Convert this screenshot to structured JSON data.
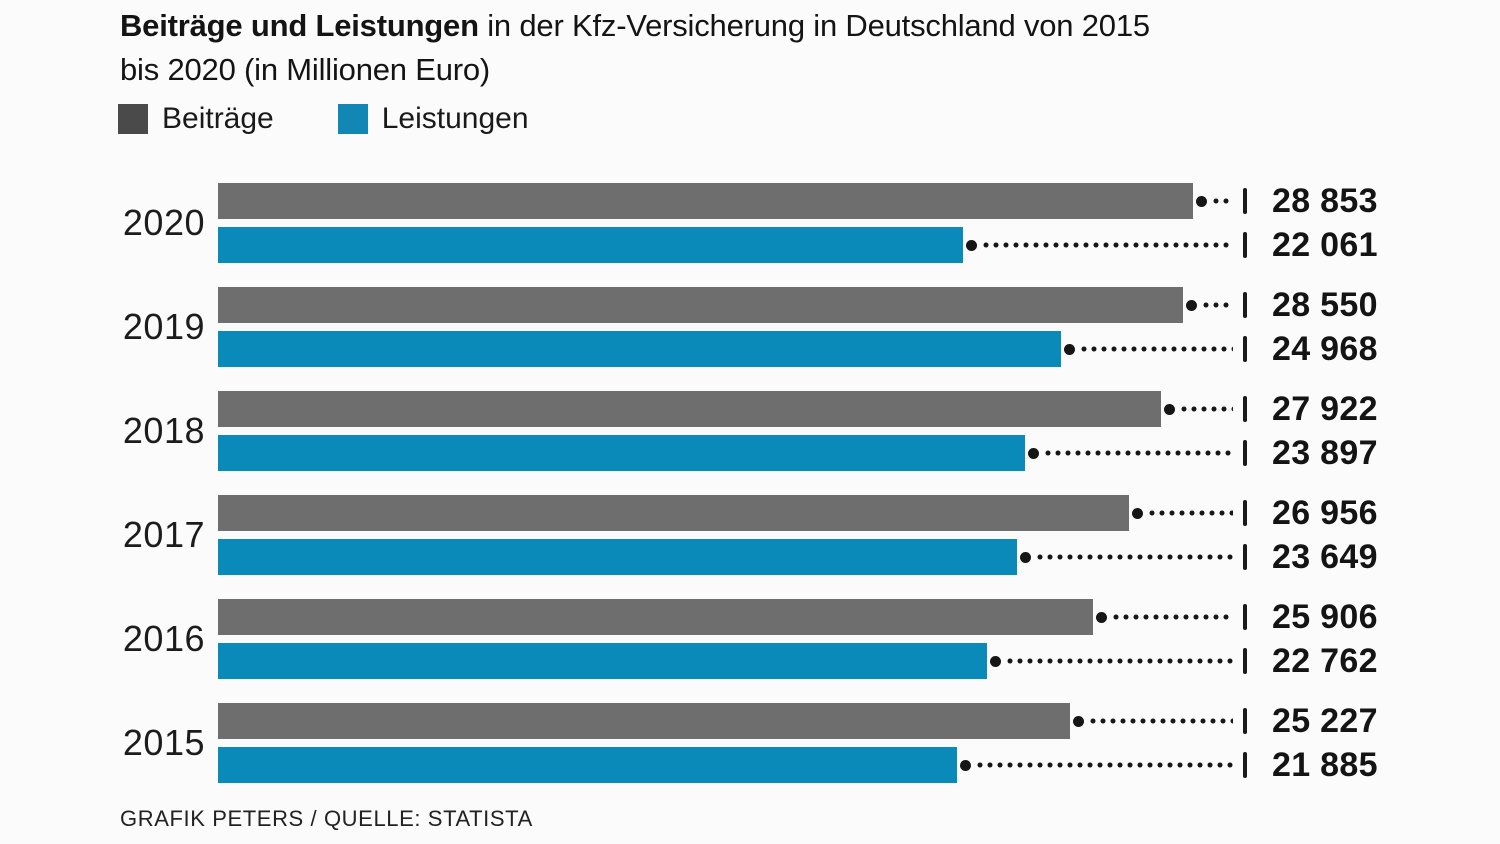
{
  "title": {
    "bold": "Beiträge und Leistungen",
    "rest": " in der Kfz-Versicherung in Deutschland von 2015",
    "line2": "bis 2020 (in Millionen Euro)"
  },
  "legend": {
    "items": [
      {
        "label": "Beiträge",
        "color": "#4a4a4a"
      },
      {
        "label": "Leistungen",
        "color": "#1287b5"
      }
    ]
  },
  "footer": {
    "credit": "GRAFIK PETERS / QUELLE: STATISTA"
  },
  "colors": {
    "background": "#fbfbfb",
    "text": "#161616",
    "value_text": "#141414",
    "leader": "#161616",
    "beitraege_bar": "#6e6e6e",
    "leistungen_bar": "#0a8ab8",
    "legend_beitraege": "#4a4a4a",
    "legend_leistungen": "#1287b5"
  },
  "chart_data": {
    "type": "bar",
    "orientation": "horizontal",
    "title": "Beiträge und Leistungen in der Kfz-Versicherung in Deutschland von 2015 bis 2020 (in Millionen Euro)",
    "unit": "Millionen Euro",
    "axis_max": 30400,
    "grid": false,
    "legend_position": "top",
    "categories": [
      "2020",
      "2019",
      "2018",
      "2017",
      "2016",
      "2015"
    ],
    "series": [
      {
        "name": "Beiträge",
        "color": "#6e6e6e",
        "values": [
          28853,
          28550,
          27922,
          26956,
          25906,
          25227
        ]
      },
      {
        "name": "Leistungen",
        "color": "#0a8ab8",
        "values": [
          22061,
          24968,
          23897,
          23649,
          22762,
          21885
        ]
      }
    ],
    "rows": [
      {
        "year": "2020",
        "beitraege": 28853,
        "beitraege_label": "28 853",
        "leistungen": 22061,
        "leistungen_label": "22 061"
      },
      {
        "year": "2019",
        "beitraege": 28550,
        "beitraege_label": "28 550",
        "leistungen": 24968,
        "leistungen_label": "24 968"
      },
      {
        "year": "2018",
        "beitraege": 27922,
        "beitraege_label": "27 922",
        "leistungen": 23897,
        "leistungen_label": "23 897"
      },
      {
        "year": "2017",
        "beitraege": 26956,
        "beitraege_label": "26 956",
        "leistungen": 23649,
        "leistungen_label": "23 649"
      },
      {
        "year": "2016",
        "beitraege": 25906,
        "beitraege_label": "25 906",
        "leistungen": 22762,
        "leistungen_label": "22 762"
      },
      {
        "year": "2015",
        "beitraege": 25227,
        "beitraege_label": "25 227",
        "leistungen": 21885,
        "leistungen_label": "21 885"
      }
    ]
  }
}
